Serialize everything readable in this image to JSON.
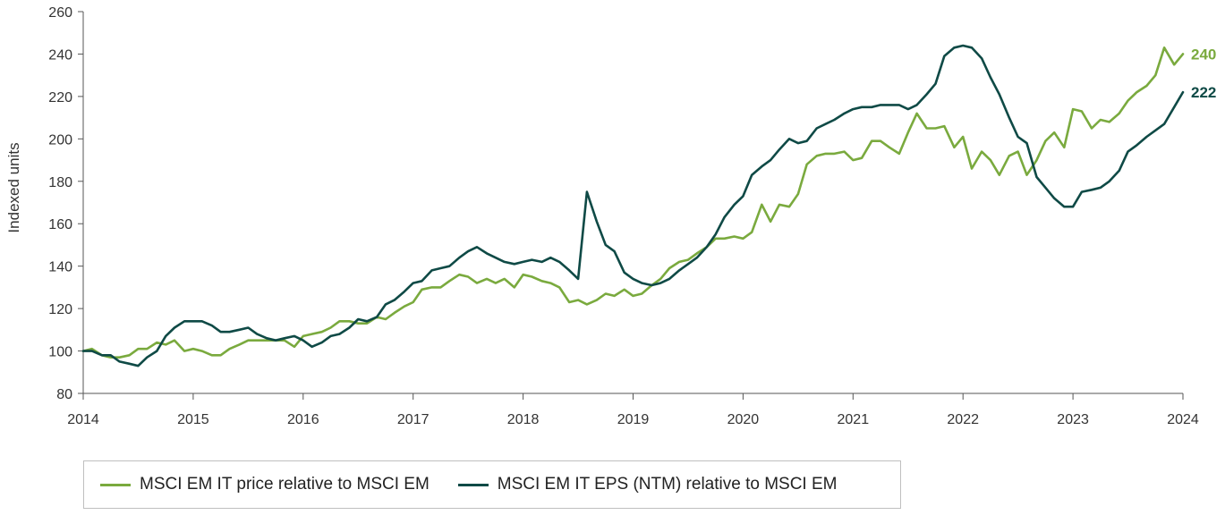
{
  "chart_data": {
    "type": "line",
    "title": "",
    "xlabel": "",
    "ylabel": "Indexed units",
    "ylim": [
      80,
      260
    ],
    "yticks": [
      80,
      100,
      120,
      140,
      160,
      180,
      200,
      220,
      240,
      260
    ],
    "xlim": [
      2014,
      2024
    ],
    "xticks": [
      2014,
      2015,
      2016,
      2017,
      2018,
      2019,
      2020,
      2021,
      2022,
      2023,
      2024
    ],
    "series": [
      {
        "name": "MSCI EM IT price relative to MSCI EM",
        "color": "#7aaa3e",
        "end_label": "240",
        "x": [
          2014.0,
          2014.08,
          2014.17,
          2014.25,
          2014.33,
          2014.42,
          2014.5,
          2014.58,
          2014.67,
          2014.75,
          2014.83,
          2014.92,
          2015.0,
          2015.08,
          2015.17,
          2015.25,
          2015.33,
          2015.42,
          2015.5,
          2015.58,
          2015.67,
          2015.75,
          2015.83,
          2015.92,
          2016.0,
          2016.08,
          2016.17,
          2016.25,
          2016.33,
          2016.42,
          2016.5,
          2016.58,
          2016.67,
          2016.75,
          2016.83,
          2016.92,
          2017.0,
          2017.08,
          2017.17,
          2017.25,
          2017.33,
          2017.42,
          2017.5,
          2017.58,
          2017.67,
          2017.75,
          2017.83,
          2017.92,
          2018.0,
          2018.08,
          2018.17,
          2018.25,
          2018.33,
          2018.42,
          2018.5,
          2018.58,
          2018.67,
          2018.75,
          2018.83,
          2018.92,
          2019.0,
          2019.08,
          2019.17,
          2019.25,
          2019.33,
          2019.42,
          2019.5,
          2019.58,
          2019.67,
          2019.75,
          2019.83,
          2019.92,
          2020.0,
          2020.08,
          2020.17,
          2020.25,
          2020.33,
          2020.42,
          2020.5,
          2020.58,
          2020.67,
          2020.75,
          2020.83,
          2020.92,
          2021.0,
          2021.08,
          2021.17,
          2021.25,
          2021.33,
          2021.42,
          2021.5,
          2021.58,
          2021.67,
          2021.75,
          2021.83,
          2021.92,
          2022.0,
          2022.08,
          2022.17,
          2022.25,
          2022.33,
          2022.42,
          2022.5,
          2022.58,
          2022.67,
          2022.75,
          2022.83,
          2022.92,
          2023.0,
          2023.08,
          2023.17,
          2023.25,
          2023.33,
          2023.42,
          2023.5,
          2023.58,
          2023.67,
          2023.75,
          2023.83,
          2023.92,
          2024.0
        ],
        "y": [
          100,
          101,
          98,
          97,
          97,
          98,
          101,
          101,
          104,
          103,
          105,
          100,
          101,
          100,
          98,
          98,
          101,
          103,
          105,
          105,
          105,
          105,
          105,
          102,
          107,
          108,
          109,
          111,
          114,
          114,
          113,
          113,
          116,
          115,
          118,
          121,
          123,
          129,
          130,
          130,
          133,
          136,
          135,
          132,
          134,
          132,
          134,
          130,
          136,
          135,
          133,
          132,
          130,
          123,
          124,
          122,
          124,
          127,
          126,
          129,
          126,
          127,
          131,
          134,
          139,
          142,
          143,
          146,
          149,
          153,
          153,
          154,
          153,
          156,
          169,
          161,
          169,
          168,
          174,
          188,
          192,
          193,
          193,
          194,
          190,
          191,
          199,
          199,
          196,
          193,
          203,
          212,
          205,
          205,
          206,
          196,
          201,
          186,
          194,
          190,
          183,
          192,
          194,
          183,
          190,
          199,
          203,
          196,
          214,
          213,
          205,
          209,
          208,
          212,
          218,
          222,
          225,
          230,
          243,
          235,
          240
        ]
      },
      {
        "name": "MSCI EM IT EPS (NTM) relative to MSCI EM",
        "color": "#0f4a46",
        "end_label": "222",
        "x": [
          2014.0,
          2014.08,
          2014.17,
          2014.25,
          2014.33,
          2014.42,
          2014.5,
          2014.58,
          2014.67,
          2014.75,
          2014.83,
          2014.92,
          2015.0,
          2015.08,
          2015.17,
          2015.25,
          2015.33,
          2015.42,
          2015.5,
          2015.58,
          2015.67,
          2015.75,
          2015.83,
          2015.92,
          2016.0,
          2016.08,
          2016.17,
          2016.25,
          2016.33,
          2016.42,
          2016.5,
          2016.58,
          2016.67,
          2016.75,
          2016.83,
          2016.92,
          2017.0,
          2017.08,
          2017.17,
          2017.25,
          2017.33,
          2017.42,
          2017.5,
          2017.58,
          2017.67,
          2017.75,
          2017.83,
          2017.92,
          2018.0,
          2018.08,
          2018.17,
          2018.25,
          2018.33,
          2018.42,
          2018.5,
          2018.58,
          2018.67,
          2018.75,
          2018.83,
          2018.92,
          2019.0,
          2019.08,
          2019.17,
          2019.25,
          2019.33,
          2019.42,
          2019.5,
          2019.58,
          2019.67,
          2019.75,
          2019.83,
          2019.92,
          2020.0,
          2020.08,
          2020.17,
          2020.25,
          2020.33,
          2020.42,
          2020.5,
          2020.58,
          2020.67,
          2020.75,
          2020.83,
          2020.92,
          2021.0,
          2021.08,
          2021.17,
          2021.25,
          2021.33,
          2021.42,
          2021.5,
          2021.58,
          2021.67,
          2021.75,
          2021.83,
          2021.92,
          2022.0,
          2022.08,
          2022.17,
          2022.25,
          2022.33,
          2022.42,
          2022.5,
          2022.58,
          2022.67,
          2022.75,
          2022.83,
          2022.92,
          2023.0,
          2023.08,
          2023.17,
          2023.25,
          2023.33,
          2023.42,
          2023.5,
          2023.58,
          2023.67,
          2023.75,
          2023.83,
          2023.92,
          2024.0
        ],
        "y": [
          100,
          100,
          98,
          98,
          95,
          94,
          93,
          97,
          100,
          107,
          111,
          114,
          114,
          114,
          112,
          109,
          109,
          110,
          111,
          108,
          106,
          105,
          106,
          107,
          105,
          102,
          104,
          107,
          108,
          111,
          115,
          114,
          116,
          122,
          124,
          128,
          132,
          133,
          138,
          139,
          140,
          144,
          147,
          149,
          146,
          144,
          142,
          141,
          142,
          143,
          142,
          144,
          142,
          138,
          134,
          175,
          161,
          150,
          147,
          137,
          134,
          132,
          131,
          132,
          134,
          138,
          141,
          144,
          149,
          155,
          163,
          169,
          173,
          183,
          187,
          190,
          195,
          200,
          198,
          199,
          205,
          207,
          209,
          212,
          214,
          215,
          215,
          216,
          216,
          216,
          214,
          216,
          221,
          226,
          239,
          243,
          244,
          243,
          238,
          229,
          221,
          210,
          201,
          198,
          182,
          177,
          172,
          168,
          168,
          175,
          176,
          177,
          180,
          185,
          194,
          197,
          201,
          204,
          207,
          215,
          222
        ]
      }
    ]
  }
}
